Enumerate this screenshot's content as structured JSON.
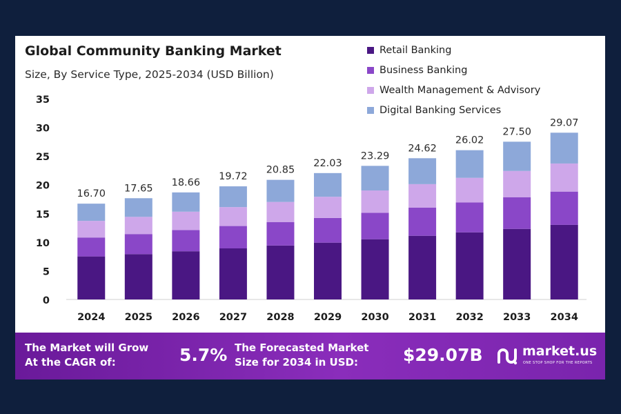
{
  "chart_data": {
    "type": "bar",
    "stacked": true,
    "title": "Global Community Banking Market",
    "subtitle": "Size, By Service Type, 2025-2034 (USD Billion)",
    "categories": [
      "2024",
      "2025",
      "2026",
      "2027",
      "2028",
      "2029",
      "2030",
      "2031",
      "2032",
      "2033",
      "2034"
    ],
    "series": [
      {
        "name": "Retail Banking",
        "color": "#4a1783",
        "values": [
          7.5,
          7.9,
          8.4,
          8.9,
          9.4,
          9.9,
          10.5,
          11.1,
          11.7,
          12.3,
          13.0
        ]
      },
      {
        "name": "Business Banking",
        "color": "#8a47c8",
        "values": [
          3.3,
          3.5,
          3.7,
          3.9,
          4.1,
          4.3,
          4.6,
          4.9,
          5.2,
          5.5,
          5.8
        ]
      },
      {
        "name": "Wealth Management & Advisory",
        "color": "#cea7ea",
        "values": [
          2.9,
          3.0,
          3.2,
          3.3,
          3.5,
          3.7,
          3.9,
          4.1,
          4.3,
          4.6,
          4.9
        ]
      },
      {
        "name": "Digital Banking Services",
        "color": "#8da8d9",
        "values": [
          3.0,
          3.25,
          3.36,
          3.62,
          3.85,
          4.13,
          4.29,
          4.52,
          4.82,
          5.1,
          5.37
        ]
      }
    ],
    "totals": [
      "16.70",
      "17.65",
      "18.66",
      "19.72",
      "20.85",
      "22.03",
      "23.29",
      "24.62",
      "26.02",
      "27.50",
      "29.07"
    ],
    "yticks": [
      "0",
      "5",
      "10",
      "15",
      "20",
      "25",
      "30",
      "35"
    ],
    "ylim": [
      0,
      35
    ],
    "xlabel": "",
    "ylabel": "",
    "grid": false,
    "legend_position": "top-right"
  },
  "footer": {
    "cagr_label_line1": "The Market will Grow",
    "cagr_label_line2": "At the CAGR of:",
    "cagr_value": "5.7%",
    "forecast_label_line1": "The Forecasted Market",
    "forecast_label_line2": "Size for 2034 in USD:",
    "forecast_value": "$29.07B",
    "brand_name": "market.us",
    "brand_tagline": "ONE STOP SHOP FOR THE REPORTS"
  }
}
